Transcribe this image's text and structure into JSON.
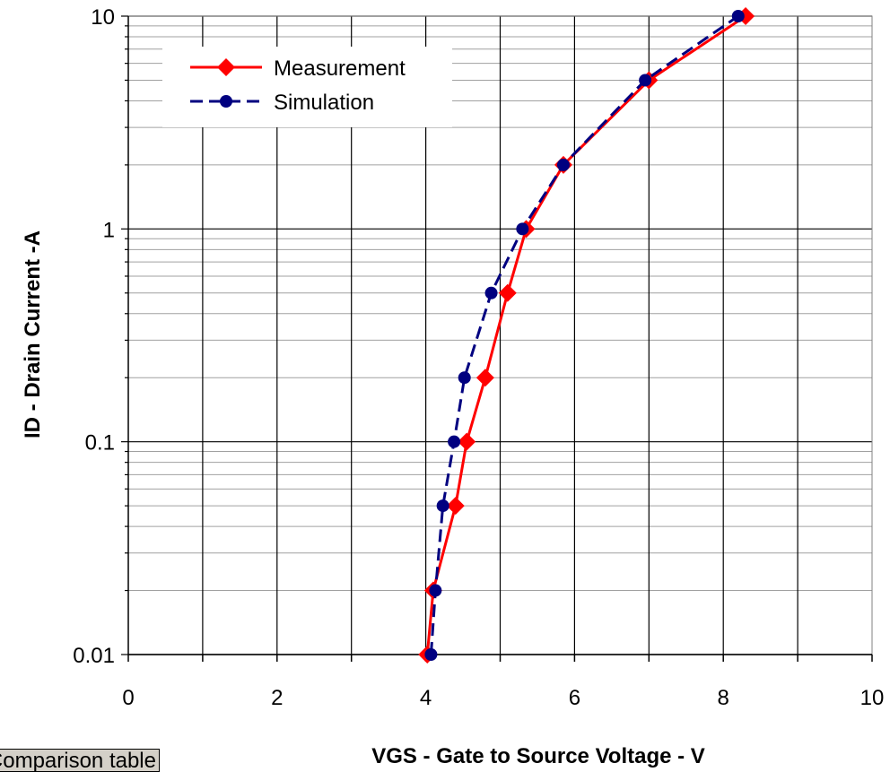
{
  "chart_data": {
    "type": "scatter",
    "xlabel": "VGS - Gate to Source Voltage - V",
    "ylabel": "ID - Drain Current -A",
    "xlim": [
      0,
      10
    ],
    "ylim": [
      0.01,
      10
    ],
    "yscale": "log",
    "x_ticks": [
      0,
      2,
      4,
      6,
      8,
      10
    ],
    "y_ticks": [
      0.01,
      0.1,
      1,
      10
    ],
    "x_tick_labels": [
      "0",
      "2",
      "4",
      "6",
      "8",
      "10"
    ],
    "y_tick_labels": [
      "0.01",
      "0.1",
      "1",
      "10"
    ],
    "grid": true,
    "legend_position": "top-left",
    "series": [
      {
        "name": "Measurement",
        "color": "#ff0000",
        "marker": "diamond",
        "line": "solid",
        "x": [
          4.02,
          4.1,
          4.4,
          4.55,
          4.8,
          5.1,
          5.35,
          5.85,
          7.0,
          8.3
        ],
        "y": [
          0.01,
          0.02,
          0.05,
          0.1,
          0.2,
          0.5,
          1,
          2,
          5,
          10
        ]
      },
      {
        "name": "Simulation",
        "color": "#000080",
        "marker": "circle",
        "line": "dashed",
        "x": [
          4.07,
          4.13,
          4.23,
          4.38,
          4.52,
          4.88,
          5.3,
          5.85,
          6.95,
          8.2
        ],
        "y": [
          0.01,
          0.02,
          0.05,
          0.1,
          0.2,
          0.5,
          1,
          2,
          5,
          10
        ]
      }
    ]
  },
  "ui": {
    "tab_label": "Comparison table"
  }
}
